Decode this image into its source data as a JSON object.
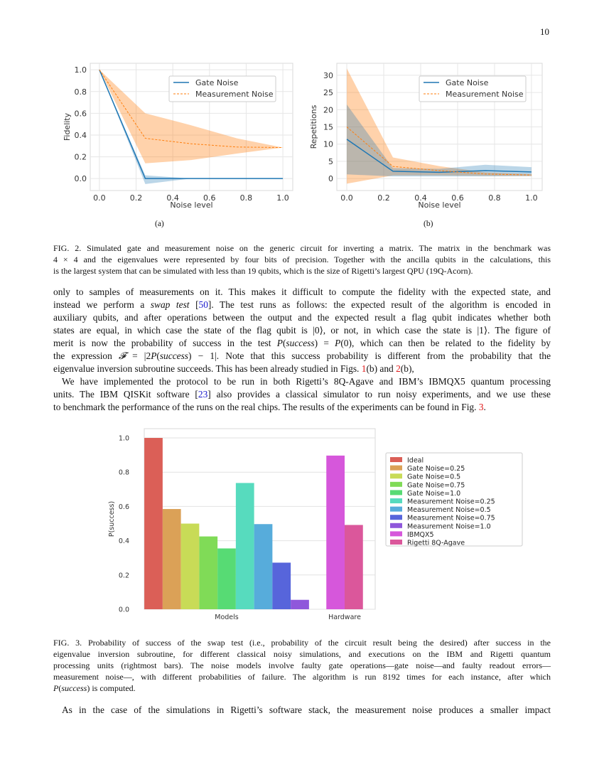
{
  "page_number": "10",
  "figure2": {
    "sublabels": [
      "(a)",
      "(b)"
    ],
    "caption": [
      [
        {
          "t": "FIG. 2. Simulated gate and measurement noise on the generic circuit for inverting a matrix. The matrix in the benchmark was"
        }
      ],
      [
        {
          "t": "4 × 4 and the eigenvalues were represented by four bits of precision. Together with the ancilla qubits in the calculations, this"
        }
      ],
      [
        {
          "t": "is the largest system that can be simulated with less than 19 qubits, which is the size of Rigetti’s largest QPU (19Q-Acorn)."
        }
      ]
    ]
  },
  "body1": [
    [
      {
        "t": "only to samples of measurements on it. This makes it difficult to compute the fidelity with the expected state, and"
      }
    ],
    [
      {
        "t": "instead we perform a "
      },
      {
        "t": "swap test",
        "k": "it"
      },
      {
        "t": " ["
      },
      {
        "t": "50",
        "k": "cite"
      },
      {
        "t": "]. The test runs as follows: the expected result of the algorithm is encoded in"
      }
    ],
    [
      {
        "t": "auxiliary qubits, and after operations between the output and the expected result a flag qubit indicates whether both"
      }
    ],
    [
      {
        "t": "states are equal, in which case the state of the flag qubit is |0⟩, or not, in which case the state is |1⟩. The figure of"
      }
    ],
    [
      {
        "t": "merit is now the probability of success in the test "
      },
      {
        "t": "P",
        "k": "it"
      },
      {
        "t": "("
      },
      {
        "t": "success",
        "k": "it"
      },
      {
        "t": ") = "
      },
      {
        "t": "P",
        "k": "it"
      },
      {
        "t": "(0), which can then be related to the fidelity by"
      }
    ],
    [
      {
        "t": "the expression "
      },
      {
        "t": "𝓕",
        "k": "it"
      },
      {
        "t": " = |2"
      },
      {
        "t": "P",
        "k": "it"
      },
      {
        "t": "("
      },
      {
        "t": "success",
        "k": "it"
      },
      {
        "t": ") − 1|. Note that this success probability is different from the probability that the"
      }
    ],
    [
      {
        "t": "eigenvalue inversion subroutine succeeds. This has been already studied in Figs. "
      },
      {
        "t": "1",
        "k": "ref"
      },
      {
        "t": "(b) and  "
      },
      {
        "t": "2",
        "k": "ref"
      },
      {
        "t": "(b),"
      }
    ]
  ],
  "body2": [
    [
      {
        "t": "We have implemented the protocol to be run in both Rigetti’s 8Q-Agave and IBM’s IBMQX5 quantum processing"
      }
    ],
    [
      {
        "t": "units. The IBM QISKit software ["
      },
      {
        "t": "23",
        "k": "cite"
      },
      {
        "t": "] also provides a classical simulator to run noisy experiments, and we use these"
      }
    ],
    [
      {
        "t": "to benchmark the performance of the runs on the real chips. The results of the experiments can be found in Fig. "
      },
      {
        "t": "3",
        "k": "ref"
      },
      {
        "t": "."
      }
    ]
  ],
  "figure3": {
    "caption": [
      [
        {
          "t": "FIG. 3. Probability of success of the swap test (i.e., probability of the circuit result being the desired) after success in the"
        }
      ],
      [
        {
          "t": "eigenvalue inversion subroutine, for different classical noisy simulations, and executions on the IBM and Rigetti quantum"
        }
      ],
      [
        {
          "t": "processing units (rightmost bars). The noise models involve faulty gate operations—gate noise—and faulty readout errors—"
        }
      ],
      [
        {
          "t": "measurement noise—, with different probabilities of failure. The algorithm is run 8192 times for each instance, after which"
        }
      ],
      [
        {
          "t": "P",
          "k": "it"
        },
        {
          "t": "("
        },
        {
          "t": "success",
          "k": "it"
        },
        {
          "t": ") is computed."
        }
      ]
    ]
  },
  "body3": [
    [
      {
        "t": "As in the case of the simulations in Rigetti’s software stack, the measurement noise produces a smaller impact"
      }
    ]
  ],
  "chart_data": [
    {
      "type": "line",
      "panel": "(a)",
      "xlabel": "Noise level",
      "ylabel": "Fidelity",
      "xlim": [
        -0.05,
        1.054
      ],
      "ylim": [
        -0.11,
        1.06
      ],
      "xticks": [
        "0.0",
        "0.2",
        "0.4",
        "0.6",
        "0.8",
        "1.0"
      ],
      "yticks": [
        "0.0",
        "0.2",
        "0.4",
        "0.6",
        "0.8",
        "1.0"
      ],
      "grid": true,
      "legend": "upper-right",
      "x": [
        0,
        0.25,
        0.5,
        0.75,
        1.0
      ],
      "series": [
        {
          "name": "Gate Noise",
          "style": "solid",
          "color": "#1f77b4",
          "values": [
            1,
            0,
            0,
            0,
            0
          ],
          "lower": [
            1,
            -0.05,
            0,
            0,
            0
          ],
          "upper": [
            1,
            0.03,
            0,
            0,
            0
          ]
        },
        {
          "name": "Measurement Noise",
          "style": "dashed",
          "color": "#ff7f0e",
          "values": [
            1,
            0.37,
            0.32,
            0.29,
            0.285
          ],
          "lower": [
            1,
            0.14,
            0.17,
            0.23,
            0.285
          ],
          "upper": [
            1,
            0.6,
            0.49,
            0.37,
            0.285
          ]
        }
      ]
    },
    {
      "type": "line",
      "panel": "(b)",
      "xlabel": "Noise level",
      "ylabel": "Repetitions",
      "xlim": [
        -0.054,
        1.058
      ],
      "ylim": [
        -3.5,
        33.5
      ],
      "xticks": [
        "0.0",
        "0.2",
        "0.4",
        "0.6",
        "0.8",
        "1.0"
      ],
      "yticks": [
        "0",
        "5",
        "10",
        "15",
        "20",
        "25",
        "30"
      ],
      "grid": true,
      "legend": "upper-right",
      "x": [
        0,
        0.25,
        0.5,
        0.75,
        1.0
      ],
      "series": [
        {
          "name": "Gate Noise",
          "style": "solid",
          "color": "#1f77b4",
          "values": [
            11.4,
            2.1,
            1.8,
            2.3,
            1.9
          ],
          "lower": [
            1.2,
            0.6,
            0.6,
            0.6,
            0.7
          ],
          "upper": [
            21.5,
            3,
            2.8,
            4,
            3.3
          ]
        },
        {
          "name": "Measurement Noise",
          "style": "dashed",
          "color": "#ff7f0e",
          "values": [
            15,
            3.5,
            2.3,
            1.3,
            1.0
          ],
          "lower": [
            -1.5,
            0.9,
            0.9,
            0.8,
            0.7
          ],
          "upper": [
            32,
            6.1,
            3.6,
            1.8,
            1.3
          ]
        }
      ]
    },
    {
      "type": "bar",
      "ylabel": "P(success)",
      "ylim": [
        0,
        1.054
      ],
      "yticks": [
        "0.0",
        "0.2",
        "0.4",
        "0.6",
        "0.8",
        "1.0"
      ],
      "grid": true,
      "legend": "right",
      "categories": [
        "Models",
        "Hardware"
      ],
      "series": [
        {
          "name": "Ideal",
          "category": "Models",
          "value": 1.0,
          "color": "#db5f57"
        },
        {
          "name": "Gate Noise=0.25",
          "category": "Models",
          "value": 0.585,
          "color": "#dba157"
        },
        {
          "name": "Gate Noise=0.5",
          "category": "Models",
          "value": 0.5,
          "color": "#c8db57"
        },
        {
          "name": "Gate Noise=0.75",
          "category": "Models",
          "value": 0.425,
          "color": "#80db57"
        },
        {
          "name": "Gate Noise=1.0",
          "category": "Models",
          "value": 0.355,
          "color": "#57db74"
        },
        {
          "name": "Measurement Noise=0.25",
          "category": "Models",
          "value": 0.737,
          "color": "#57dbbe"
        },
        {
          "name": "Measurement Noise=0.5",
          "category": "Models",
          "value": 0.497,
          "color": "#57acdb"
        },
        {
          "name": "Measurement Noise=0.75",
          "category": "Models",
          "value": 0.272,
          "color": "#5765db"
        },
        {
          "name": "Measurement Noise=1.0",
          "category": "Models",
          "value": 0.055,
          "color": "#8f57db"
        },
        {
          "name": "IBMQX5",
          "category": "Hardware",
          "value": 0.897,
          "color": "#d657db"
        },
        {
          "name": "Rigetti 8Q-Agave",
          "category": "Hardware",
          "value": 0.492,
          "color": "#db579b"
        }
      ]
    }
  ]
}
